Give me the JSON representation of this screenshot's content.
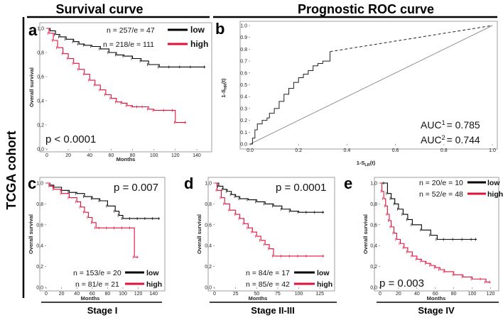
{
  "headers": {
    "survival": "Survival curve",
    "roc": "Prognostic ROC curve",
    "cohort": "TCGA cohort"
  },
  "colors": {
    "low": "#000000",
    "high": "#e0103a"
  },
  "chart_data": [
    {
      "id": "a",
      "type": "line",
      "panel_label": "a",
      "xlabel": "Months",
      "ylabel": "Overall survival",
      "xlim": [
        0,
        150
      ],
      "ylim": [
        0,
        1.0
      ],
      "xticks": [
        "0",
        "20",
        "40",
        "60",
        "80",
        "100",
        "120",
        "140"
      ],
      "yticks": [
        "0,0",
        "0,2",
        "0,4",
        "0,6",
        "0,8",
        "1,0"
      ],
      "p_value": "p < 0.0001",
      "series": [
        {
          "name": "low",
          "legend": "n = 257/e = 47",
          "legend_word": "low",
          "color": "#000000",
          "x": [
            0,
            3,
            8,
            12,
            18,
            25,
            30,
            35,
            42,
            50,
            58,
            65,
            72,
            80,
            88,
            95,
            105,
            115,
            125,
            135,
            148
          ],
          "y": [
            1.0,
            0.98,
            0.95,
            0.93,
            0.91,
            0.89,
            0.87,
            0.86,
            0.85,
            0.83,
            0.8,
            0.78,
            0.77,
            0.75,
            0.73,
            0.7,
            0.68,
            0.68,
            0.68,
            0.68,
            0.68
          ]
        },
        {
          "name": "high",
          "legend": "n = 218/e = 111",
          "legend_word": "high",
          "color": "#e0103a",
          "x": [
            0,
            2,
            6,
            10,
            15,
            20,
            25,
            30,
            35,
            40,
            45,
            50,
            55,
            60,
            65,
            70,
            75,
            80,
            85,
            90,
            95,
            100,
            110,
            118,
            120,
            130
          ],
          "y": [
            1.0,
            0.96,
            0.9,
            0.84,
            0.79,
            0.75,
            0.71,
            0.66,
            0.62,
            0.57,
            0.53,
            0.49,
            0.45,
            0.42,
            0.39,
            0.38,
            0.36,
            0.35,
            0.35,
            0.35,
            0.33,
            0.32,
            0.32,
            0.32,
            0.22,
            0.22
          ]
        }
      ]
    },
    {
      "id": "b",
      "type": "line",
      "panel_label": "b",
      "xlabel": "1-S",
      "xlabel_sub": "LR",
      "xlabel_tail": "(t)",
      "ylabel": "1-S",
      "ylabel_sub": "HR",
      "ylabel_tail": "(t)",
      "xlim": [
        0,
        1.0
      ],
      "ylim": [
        0,
        1.0
      ],
      "xticks": [
        "0.0",
        "0.2",
        "0.4",
        "0.6",
        "0.8",
        "1.0"
      ],
      "yticks": [
        "0.0",
        "0.1",
        "0.2",
        "0.3",
        "0.4",
        "0.5",
        "0.6",
        "0.7",
        "0.8",
        "0.9",
        "1.0"
      ],
      "auc1_label": "AUC",
      "auc1_sup": "1",
      "auc1_value": "= 0.785",
      "auc2_label": "AUC",
      "auc2_sup": "2",
      "auc2_value": "= 0.744",
      "roc": {
        "x": [
          0,
          0.01,
          0.02,
          0.03,
          0.05,
          0.07,
          0.08,
          0.1,
          0.12,
          0.14,
          0.16,
          0.18,
          0.2,
          0.22,
          0.24,
          0.26,
          0.28,
          0.3,
          0.33,
          0.33
        ],
        "y": [
          0,
          0.05,
          0.12,
          0.17,
          0.2,
          0.22,
          0.26,
          0.3,
          0.36,
          0.42,
          0.47,
          0.52,
          0.56,
          0.59,
          0.62,
          0.66,
          0.68,
          0.7,
          0.7,
          0.78
        ]
      },
      "roc_extension": {
        "x": [
          0.33,
          1.0
        ],
        "y": [
          0.78,
          1.0
        ]
      },
      "reference": {
        "x": [
          0,
          1.0
        ],
        "y": [
          0,
          1.0
        ]
      }
    },
    {
      "id": "c",
      "type": "line",
      "panel_label": "c",
      "xlabel": "Months",
      "ylabel": "Overall survival",
      "xlim": [
        0,
        150
      ],
      "ylim": [
        0,
        1.0
      ],
      "xticks": [
        "0",
        "20",
        "40",
        "60",
        "80",
        "100",
        "120",
        "140"
      ],
      "yticks": [
        "0,0",
        "0,2",
        "0,4",
        "0,6",
        "0,8",
        "1,0"
      ],
      "p_value": "p = 0.007",
      "stage": "Stage I",
      "series": [
        {
          "name": "low",
          "legend": "n = 153/e = 20",
          "legend_word": "low",
          "color": "#000000",
          "x": [
            0,
            5,
            10,
            20,
            30,
            40,
            50,
            60,
            70,
            80,
            90,
            95,
            100,
            110,
            120,
            130,
            140,
            148
          ],
          "y": [
            1.0,
            0.98,
            0.96,
            0.93,
            0.91,
            0.9,
            0.87,
            0.85,
            0.83,
            0.78,
            0.73,
            0.69,
            0.66,
            0.66,
            0.66,
            0.66,
            0.66,
            0.66
          ]
        },
        {
          "name": "high",
          "legend": "n = 81/e = 21",
          "legend_word": "high",
          "color": "#e0103a",
          "x": [
            0,
            5,
            10,
            20,
            30,
            40,
            45,
            50,
            55,
            60,
            65,
            70,
            80,
            90,
            100,
            110,
            115,
            120
          ],
          "y": [
            1.0,
            0.97,
            0.94,
            0.9,
            0.86,
            0.82,
            0.77,
            0.72,
            0.67,
            0.62,
            0.57,
            0.57,
            0.57,
            0.57,
            0.57,
            0.57,
            0.29,
            0.29
          ]
        }
      ]
    },
    {
      "id": "d",
      "type": "line",
      "panel_label": "d",
      "xlabel": "Months",
      "ylabel": "Overall survival",
      "xlim": [
        0,
        137.5
      ],
      "ylim": [
        0,
        1.0
      ],
      "xticks": [
        "0",
        "25",
        "50",
        "75",
        "100",
        "125"
      ],
      "yticks": [
        "0,0",
        "0,2",
        "0,4",
        "0,6",
        "0,8",
        "1,0"
      ],
      "p_value": "p = 0.0001",
      "stage": "Stage II-III",
      "series": [
        {
          "name": "low",
          "legend": "n = 84/e = 17",
          "legend_word": "low",
          "color": "#000000",
          "x": [
            0,
            5,
            10,
            15,
            20,
            25,
            30,
            40,
            50,
            60,
            70,
            80,
            90,
            100,
            110,
            120,
            130
          ],
          "y": [
            1.0,
            0.97,
            0.94,
            0.92,
            0.89,
            0.87,
            0.85,
            0.84,
            0.82,
            0.8,
            0.78,
            0.75,
            0.73,
            0.72,
            0.72,
            0.72,
            0.72
          ]
        },
        {
          "name": "high",
          "legend": "n = 85/e = 42",
          "legend_word": "high",
          "color": "#e0103a",
          "x": [
            0,
            3,
            8,
            12,
            18,
            25,
            30,
            35,
            40,
            45,
            50,
            55,
            60,
            65,
            70,
            80,
            90,
            100,
            110,
            130
          ],
          "y": [
            1.0,
            0.93,
            0.86,
            0.8,
            0.74,
            0.7,
            0.66,
            0.61,
            0.57,
            0.53,
            0.49,
            0.45,
            0.41,
            0.37,
            0.3,
            0.3,
            0.3,
            0.3,
            0.3,
            0.3
          ]
        }
      ]
    },
    {
      "id": "e",
      "type": "line",
      "panel_label": "e",
      "xlabel": "Months",
      "ylabel": "Overall survival",
      "xlim": [
        0,
        125
      ],
      "ylim": [
        0,
        1.0
      ],
      "xticks": [
        "0",
        "20",
        "40",
        "60",
        "80",
        "100",
        "120"
      ],
      "yticks": [
        "0,0",
        "0,2",
        "0,4",
        "0,6",
        "0,8",
        "1,0"
      ],
      "p_value": "p = 0.003",
      "stage": "Stage IV",
      "series": [
        {
          "name": "low",
          "legend": "n = 20/e = 10",
          "legend_word": "low",
          "color": "#000000",
          "x": [
            0,
            5,
            8,
            12,
            16,
            20,
            25,
            30,
            35,
            45,
            55,
            62,
            70,
            80,
            90,
            100,
            105
          ],
          "y": [
            1.0,
            1.0,
            0.9,
            0.85,
            0.8,
            0.75,
            0.7,
            0.65,
            0.6,
            0.55,
            0.5,
            0.46,
            0.46,
            0.46,
            0.46,
            0.46,
            0.46
          ]
        },
        {
          "name": "high",
          "legend": "n = 52/e = 48",
          "legend_word": "high",
          "color": "#e0103a",
          "x": [
            0,
            2,
            4,
            6,
            8,
            10,
            12,
            15,
            18,
            22,
            26,
            30,
            35,
            40,
            45,
            50,
            55,
            60,
            65,
            70,
            80,
            90,
            100,
            110,
            115,
            120
          ],
          "y": [
            1.0,
            0.92,
            0.85,
            0.78,
            0.7,
            0.64,
            0.58,
            0.52,
            0.46,
            0.42,
            0.38,
            0.34,
            0.3,
            0.27,
            0.25,
            0.23,
            0.21,
            0.19,
            0.17,
            0.15,
            0.12,
            0.1,
            0.08,
            0.08,
            0.05,
            0.05
          ]
        }
      ]
    }
  ]
}
